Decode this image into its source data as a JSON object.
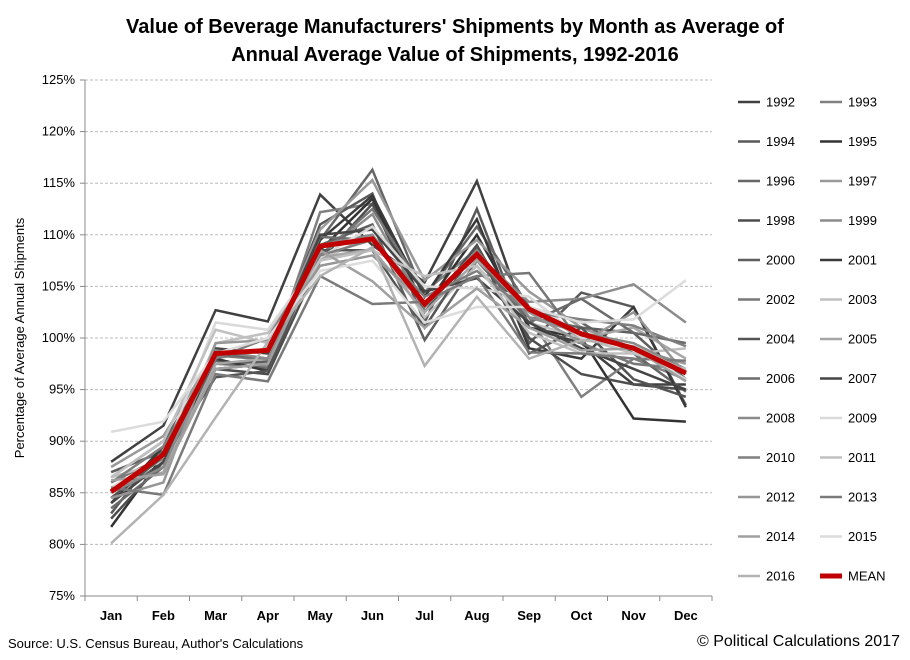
{
  "chart_data": {
    "type": "line",
    "title": [
      "Value of Beverage Manufacturers' Shipments by Month as Average of",
      "Annual Average Value of Shipments, 1992-2016"
    ],
    "xlabel": "",
    "ylabel": "Percentage of Average Annual Shipments",
    "categories": [
      "Jan",
      "Feb",
      "Mar",
      "Apr",
      "May",
      "Jun",
      "Jul",
      "Aug",
      "Sep",
      "Oct",
      "Nov",
      "Dec"
    ],
    "ylim": [
      75,
      125
    ],
    "yticks": [
      75,
      80,
      85,
      90,
      95,
      100,
      105,
      110,
      115,
      120,
      125
    ],
    "ytick_format": "%",
    "grid": true,
    "legend_placement": "right",
    "series": [
      {
        "name": "1992",
        "color": "#404040",
        "values": [
          88.0,
          91.5,
          102.7,
          101.6,
          113.9,
          109.0,
          105.4,
          115.2,
          101.0,
          99.5,
          95.5,
          95.5
        ]
      },
      {
        "name": "1993",
        "color": "#808080",
        "values": [
          84.5,
          88.0,
          97.5,
          97.2,
          112.2,
          113.0,
          104.5,
          108.6,
          102.0,
          94.3,
          98.0,
          96.0
        ]
      },
      {
        "name": "1994",
        "color": "#595959",
        "values": [
          83.0,
          89.5,
          98.5,
          98.0,
          111.0,
          114.0,
          101.5,
          112.5,
          99.5,
          104.4,
          103.0,
          93.5
        ]
      },
      {
        "name": "1995",
        "color": "#333333",
        "values": [
          81.7,
          88.6,
          97.0,
          97.5,
          108.5,
          113.5,
          103.0,
          110.0,
          101.0,
          100.0,
          92.2,
          91.9
        ]
      },
      {
        "name": "1996",
        "color": "#666666",
        "values": [
          86.5,
          90.0,
          97.8,
          97.0,
          109.5,
          116.3,
          104.0,
          110.8,
          103.0,
          101.5,
          98.5,
          94.8
        ]
      },
      {
        "name": "1997",
        "color": "#999999",
        "values": [
          87.5,
          90.5,
          98.6,
          98.6,
          110.5,
          115.3,
          105.6,
          109.5,
          104.5,
          101.0,
          99.0,
          97.5
        ]
      },
      {
        "name": "1998",
        "color": "#4d4d4d",
        "values": [
          82.5,
          88.0,
          97.0,
          96.5,
          107.5,
          113.0,
          102.5,
          109.0,
          100.0,
          96.5,
          95.5,
          95.0
        ]
      },
      {
        "name": "1999",
        "color": "#8c8c8c",
        "values": [
          85.5,
          88.2,
          98.0,
          99.0,
          108.0,
          112.0,
          103.0,
          108.0,
          103.5,
          103.8,
          105.2,
          101.5
        ]
      },
      {
        "name": "2000",
        "color": "#5f5f5f",
        "values": [
          87.0,
          89.0,
          97.5,
          97.7,
          109.0,
          111.0,
          99.8,
          107.5,
          102.0,
          101.0,
          100.5,
          96.0
        ]
      },
      {
        "name": "2001",
        "color": "#3a3a3a",
        "values": [
          84.0,
          89.5,
          98.0,
          96.8,
          109.5,
          113.8,
          104.0,
          111.5,
          99.0,
          98.0,
          103.0,
          93.3
        ]
      },
      {
        "name": "2002",
        "color": "#777777",
        "values": [
          86.0,
          88.5,
          98.3,
          97.9,
          108.0,
          112.5,
          104.5,
          106.0,
          106.3,
          99.5,
          97.5,
          97.0
        ]
      },
      {
        "name": "2003",
        "color": "#bfbfbf",
        "values": [
          86.5,
          88.0,
          99.5,
          100.5,
          107.5,
          110.0,
          102.0,
          107.0,
          101.5,
          100.0,
          98.5,
          99.0
        ]
      },
      {
        "name": "2004",
        "color": "#555555",
        "values": [
          84.5,
          88.5,
          96.2,
          96.8,
          108.5,
          108.5,
          101.0,
          108.8,
          98.5,
          101.0,
          96.0,
          94.3
        ]
      },
      {
        "name": "2005",
        "color": "#a6a6a6",
        "values": [
          85.5,
          87.0,
          97.5,
          98.0,
          107.8,
          108.6,
          102.5,
          107.5,
          103.0,
          100.0,
          101.0,
          98.0
        ]
      },
      {
        "name": "2006",
        "color": "#6b6b6b",
        "values": [
          83.5,
          87.5,
          98.5,
          98.0,
          109.8,
          109.5,
          103.3,
          108.0,
          101.5,
          103.8,
          100.5,
          99.5
        ]
      },
      {
        "name": "2007",
        "color": "#454545",
        "values": [
          84.0,
          88.0,
          99.0,
          98.5,
          110.0,
          110.5,
          104.5,
          105.8,
          101.5,
          99.0,
          97.0,
          95.0
        ]
      },
      {
        "name": "2008",
        "color": "#8a8a8a",
        "values": [
          85.0,
          87.5,
          98.8,
          98.0,
          109.0,
          110.0,
          103.0,
          108.5,
          102.0,
          100.5,
          99.5,
          97.0
        ]
      },
      {
        "name": "2009",
        "color": "#d9d9d9",
        "values": [
          85.5,
          88.5,
          101.5,
          100.8,
          107.8,
          110.8,
          105.0,
          104.8,
          104.0,
          100.0,
          99.0,
          96.0
        ]
      },
      {
        "name": "2010",
        "color": "#7f7f7f",
        "values": [
          86.0,
          89.5,
          98.0,
          100.0,
          108.0,
          109.5,
          104.0,
          106.5,
          102.5,
          101.8,
          101.2,
          99.2
        ]
      },
      {
        "name": "2011",
        "color": "#c0c0c0",
        "values": [
          86.5,
          90.0,
          100.8,
          99.5,
          107.5,
          108.5,
          106.0,
          107.0,
          100.5,
          98.5,
          98.5,
          97.0
        ]
      },
      {
        "name": "2012",
        "color": "#969696",
        "values": [
          84.5,
          86.0,
          99.5,
          99.8,
          107.0,
          108.0,
          103.5,
          107.8,
          102.5,
          99.5,
          102.5,
          96.5
        ]
      },
      {
        "name": "2013",
        "color": "#7a7a7a",
        "values": [
          85.5,
          84.8,
          96.5,
          95.8,
          106.0,
          103.3,
          103.5,
          106.0,
          98.6,
          98.5,
          98.0,
          97.8
        ]
      },
      {
        "name": "2014",
        "color": "#a0a0a0",
        "values": [
          86.2,
          86.8,
          97.0,
          97.5,
          108.5,
          105.5,
          101.0,
          104.8,
          101.0,
          98.8,
          99.0,
          95.8
        ]
      },
      {
        "name": "2015",
        "color": "#dcdcdc",
        "values": [
          90.9,
          91.9,
          98.5,
          100.0,
          106.5,
          107.5,
          101.5,
          103.0,
          103.0,
          101.5,
          101.8,
          105.6
        ]
      },
      {
        "name": "2016",
        "color": "#b3b3b3",
        "values": [
          80.1,
          84.8,
          92.3,
          99.6,
          106.0,
          108.8,
          97.3,
          104.0,
          98.0,
          99.8,
          99.2,
          96.8
        ]
      },
      {
        "name": "MEAN",
        "color": "#c00000",
        "values": [
          85.1,
          88.7,
          98.5,
          98.8,
          108.9,
          109.6,
          103.3,
          108.1,
          102.8,
          100.4,
          99.0,
          96.6
        ]
      }
    ]
  },
  "footer": {
    "source": "Source: U.S. Census Bureau, Author's Calculations",
    "copyright": "© Political Calculations 2017"
  }
}
